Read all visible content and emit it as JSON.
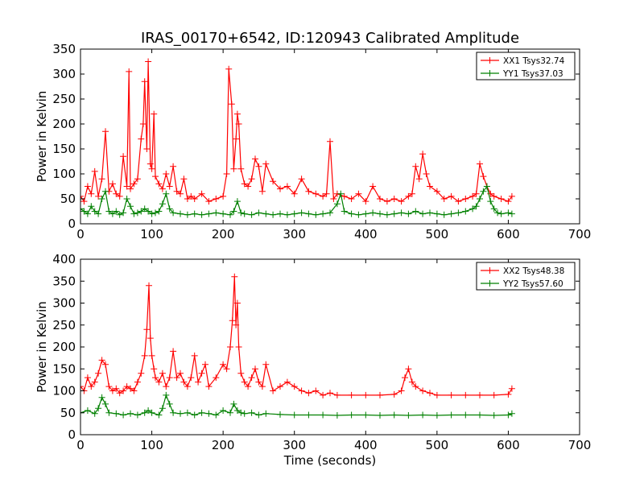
{
  "title": "IRAS_00170+6542, ID:120943 Calibrated Amplitude",
  "colors": {
    "xx": "#ff0000",
    "yy": "#008000",
    "axes": "#000000",
    "background": "#ffffff"
  },
  "chart_data": [
    {
      "type": "line",
      "title": "IRAS_00170+6542, ID:120943 Calibrated Amplitude",
      "xlabel": "",
      "ylabel": "Power in Kelvin",
      "xlim": [
        0,
        700
      ],
      "ylim": [
        0,
        350
      ],
      "xticks": [
        0,
        100,
        200,
        300,
        400,
        500,
        600,
        700
      ],
      "yticks": [
        0,
        50,
        100,
        150,
        200,
        250,
        300,
        350
      ],
      "grid": false,
      "legend": "top-right",
      "series": [
        {
          "name": "XX1 Tsys32.74",
          "color": "#ff0000",
          "x": [
            0,
            5,
            10,
            15,
            20,
            25,
            30,
            35,
            40,
            45,
            50,
            55,
            60,
            65,
            68,
            70,
            75,
            80,
            85,
            88,
            90,
            93,
            95,
            98,
            100,
            103,
            105,
            110,
            115,
            120,
            125,
            130,
            135,
            140,
            145,
            150,
            155,
            160,
            170,
            180,
            190,
            200,
            205,
            208,
            212,
            215,
            218,
            220,
            222,
            225,
            230,
            235,
            240,
            245,
            250,
            255,
            260,
            270,
            280,
            290,
            300,
            310,
            320,
            330,
            340,
            345,
            350,
            355,
            360,
            370,
            380,
            390,
            400,
            410,
            420,
            430,
            440,
            450,
            460,
            465,
            470,
            475,
            480,
            485,
            490,
            500,
            510,
            520,
            530,
            540,
            550,
            555,
            560,
            565,
            570,
            575,
            580,
            590,
            600,
            605
          ],
          "values": [
            55,
            45,
            75,
            60,
            105,
            55,
            90,
            185,
            65,
            80,
            60,
            55,
            135,
            75,
            305,
            70,
            80,
            90,
            170,
            200,
            285,
            150,
            325,
            120,
            110,
            220,
            95,
            80,
            70,
            100,
            75,
            115,
            65,
            60,
            90,
            50,
            55,
            50,
            60,
            45,
            50,
            55,
            100,
            310,
            240,
            110,
            170,
            220,
            200,
            110,
            80,
            75,
            90,
            130,
            115,
            65,
            120,
            85,
            70,
            75,
            60,
            90,
            65,
            60,
            55,
            60,
            165,
            50,
            60,
            55,
            50,
            60,
            45,
            75,
            50,
            45,
            50,
            45,
            55,
            60,
            115,
            90,
            140,
            100,
            75,
            65,
            50,
            55,
            45,
            50,
            55,
            60,
            120,
            95,
            75,
            60,
            55,
            50,
            45,
            55
          ]
        },
        {
          "name": "YY1 Tsys37.03",
          "color": "#008000",
          "x": [
            0,
            5,
            10,
            15,
            20,
            25,
            30,
            35,
            40,
            45,
            50,
            55,
            60,
            65,
            70,
            75,
            80,
            85,
            90,
            95,
            100,
            105,
            110,
            115,
            120,
            125,
            130,
            140,
            150,
            160,
            170,
            180,
            190,
            200,
            210,
            215,
            220,
            225,
            230,
            240,
            250,
            260,
            270,
            280,
            290,
            300,
            310,
            320,
            330,
            340,
            350,
            360,
            365,
            370,
            380,
            390,
            400,
            410,
            420,
            430,
            440,
            450,
            460,
            470,
            480,
            490,
            500,
            510,
            520,
            530,
            540,
            550,
            555,
            560,
            565,
            570,
            575,
            580,
            585,
            590,
            600,
            605
          ],
          "values": [
            30,
            25,
            20,
            35,
            25,
            20,
            50,
            65,
            25,
            20,
            25,
            18,
            22,
            50,
            35,
            20,
            22,
            25,
            30,
            25,
            20,
            22,
            25,
            40,
            60,
            30,
            22,
            20,
            18,
            20,
            18,
            20,
            22,
            20,
            18,
            25,
            45,
            22,
            20,
            18,
            22,
            20,
            18,
            20,
            18,
            20,
            22,
            20,
            18,
            20,
            22,
            40,
            60,
            25,
            20,
            18,
            20,
            22,
            20,
            18,
            20,
            22,
            20,
            25,
            20,
            22,
            20,
            18,
            20,
            22,
            25,
            30,
            35,
            50,
            65,
            75,
            45,
            30,
            22,
            20,
            22,
            20
          ]
        }
      ]
    },
    {
      "type": "line",
      "title": "",
      "xlabel": "Time (seconds)",
      "ylabel": "Power in Kelvin",
      "xlim": [
        0,
        700
      ],
      "ylim": [
        0,
        400
      ],
      "xticks": [
        0,
        100,
        200,
        300,
        400,
        500,
        600,
        700
      ],
      "yticks": [
        0,
        50,
        100,
        150,
        200,
        250,
        300,
        350,
        400
      ],
      "grid": false,
      "legend": "top-right",
      "series": [
        {
          "name": "XX2 Tsys48.38",
          "color": "#ff0000",
          "x": [
            0,
            5,
            10,
            15,
            20,
            25,
            30,
            35,
            40,
            45,
            50,
            55,
            60,
            65,
            70,
            75,
            80,
            85,
            90,
            93,
            96,
            98,
            100,
            103,
            105,
            110,
            115,
            120,
            125,
            130,
            135,
            140,
            145,
            150,
            155,
            160,
            165,
            170,
            175,
            180,
            190,
            200,
            205,
            210,
            213,
            216,
            218,
            220,
            222,
            225,
            230,
            235,
            240,
            245,
            250,
            255,
            260,
            270,
            280,
            290,
            300,
            310,
            320,
            330,
            340,
            350,
            360,
            380,
            400,
            420,
            440,
            450,
            455,
            460,
            465,
            470,
            480,
            490,
            500,
            520,
            540,
            560,
            580,
            600,
            605
          ],
          "values": [
            110,
            100,
            130,
            110,
            120,
            140,
            170,
            160,
            110,
            100,
            105,
            95,
            100,
            110,
            105,
            100,
            120,
            140,
            180,
            240,
            340,
            220,
            180,
            150,
            130,
            120,
            140,
            110,
            130,
            190,
            130,
            140,
            120,
            110,
            130,
            180,
            120,
            140,
            160,
            110,
            130,
            160,
            150,
            200,
            260,
            360,
            250,
            300,
            200,
            140,
            120,
            110,
            130,
            150,
            120,
            110,
            160,
            100,
            110,
            120,
            110,
            100,
            95,
            100,
            90,
            95,
            90,
            90,
            90,
            90,
            92,
            100,
            130,
            150,
            120,
            110,
            100,
            95,
            90,
            90,
            90,
            90,
            90,
            92,
            105
          ]
        },
        {
          "name": "YY2 Tsys57.60",
          "color": "#008000",
          "x": [
            0,
            10,
            20,
            25,
            30,
            35,
            40,
            50,
            60,
            70,
            80,
            90,
            95,
            100,
            110,
            115,
            120,
            125,
            130,
            140,
            150,
            160,
            170,
            180,
            190,
            200,
            210,
            215,
            220,
            225,
            230,
            240,
            250,
            260,
            280,
            300,
            320,
            340,
            360,
            380,
            400,
            420,
            440,
            460,
            480,
            500,
            520,
            540,
            560,
            580,
            600,
            605
          ],
          "values": [
            50,
            55,
            48,
            60,
            85,
            70,
            50,
            48,
            45,
            48,
            45,
            50,
            55,
            50,
            45,
            60,
            90,
            70,
            50,
            48,
            50,
            45,
            50,
            48,
            45,
            55,
            50,
            70,
            55,
            50,
            48,
            50,
            45,
            48,
            46,
            45,
            45,
            45,
            44,
            45,
            45,
            44,
            45,
            44,
            45,
            44,
            45,
            45,
            45,
            44,
            45,
            48
          ]
        }
      ]
    }
  ]
}
